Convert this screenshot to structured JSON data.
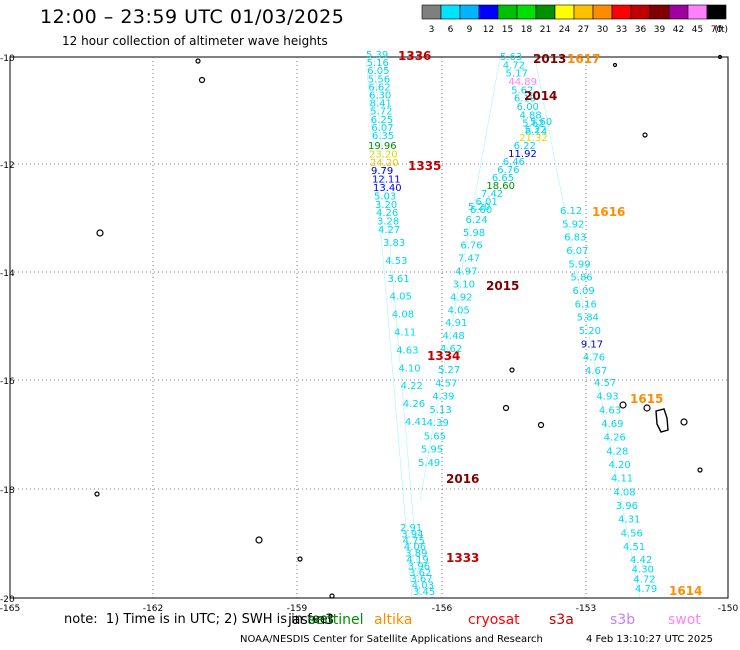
{
  "header": {
    "title": "12:00 – 23:59 UTC 01/03/2025",
    "subtitle": "12 hour collection of altimeter wave heights"
  },
  "scale": {
    "labels": [
      "3",
      "6",
      "9",
      "12",
      "15",
      "18",
      "21",
      "24",
      "27",
      "30",
      "33",
      "36",
      "39",
      "42",
      "45",
      "70"
    ],
    "unit": "(ft)",
    "colors": [
      "#7f7f7f",
      "#00e5ff",
      "#00b4ff",
      "#0000ff",
      "#00c000",
      "#00e000",
      "#009000",
      "#ffff00",
      "#ffc000",
      "#ff8c00",
      "#ff0000",
      "#c00000",
      "#800000",
      "#a000a0",
      "#ff80ff",
      "#000000"
    ]
  },
  "axes": {
    "lat_labels": [
      "-10",
      "-12",
      "-14",
      "-16",
      "-18",
      "-20"
    ],
    "lon_labels": [
      "-165",
      "-162",
      "-159",
      "-156",
      "-153",
      "-150"
    ]
  },
  "map": {
    "passes": [
      {
        "time": "1336",
        "color": "#c00000",
        "values": [
          "5.39",
          "5.16",
          "6.05",
          "5.56",
          "6.62",
          "6.30",
          "8.41",
          "5.72",
          "6.25",
          "6.07",
          "6.35"
        ]
      },
      {
        "time": "1335",
        "color": "#c00000",
        "values": [
          "19.96",
          "23.20",
          "24.20",
          "9.79",
          "12.11",
          "13.40",
          "5.03",
          "3.20",
          "4.26",
          "3.28",
          "4.27"
        ]
      },
      {
        "time": "1334",
        "color": "#c00000",
        "values": [
          "3.83",
          "4.53",
          "3.61",
          "4.05",
          "4.08",
          "4.11",
          "4.63",
          "4.10",
          "4.22",
          "4.26",
          "4.41"
        ]
      },
      {
        "time": "1333",
        "color": "#c00000",
        "values": [
          "2.91",
          "3.94",
          "4.75",
          "4.06",
          "3.89",
          "4.19",
          "3.96",
          "3.62",
          "3.67",
          "4.03",
          "3.45"
        ]
      },
      {
        "time": "2013",
        "color": "#800000",
        "values": [
          "5.63",
          "4.72",
          "5.17",
          "44.89",
          "5.62",
          "6.19",
          "6.00",
          "4.88",
          "5.62",
          "6.14"
        ]
      },
      {
        "time": "2014",
        "color": "#800000",
        "values": [
          "5.60",
          "5.22",
          "21.32",
          "6.22",
          "11.92",
          "6.46",
          "6.76",
          "6.65",
          "18.60",
          "7.42",
          "6.01",
          "6.60"
        ]
      },
      {
        "time": "2015",
        "color": "#800000",
        "values": [
          "5.20",
          "6.24",
          "5.98",
          "6.76",
          "7.47",
          "4.97",
          "3.10",
          "4.92",
          "4.05",
          "4.91",
          "4.48",
          "4.62"
        ]
      },
      {
        "time": "2016",
        "color": "#800000",
        "values": [
          "5.27",
          "4.57",
          "4.39",
          "5.13",
          "4.39",
          "5.65",
          "5.95",
          "5.49"
        ]
      },
      {
        "time": "1616",
        "color": "#ff8c00",
        "values": [
          "6.12",
          "5.92",
          "6.83",
          "6.07",
          "5.99",
          "5.86",
          "6.09",
          "6.16",
          "5.84",
          "5.20",
          "9.17",
          "4.76",
          "4.67"
        ]
      },
      {
        "time": "1615",
        "color": "#ff8c00",
        "values": [
          "4.57",
          "4.93",
          "4.63",
          "4.69",
          "4.26",
          "4.28",
          "4.20",
          "4.11",
          "4.08",
          "3.96",
          "4.31",
          "4.56",
          "4.51"
        ]
      },
      {
        "time": "1614",
        "color": "#ff8c00",
        "values": [
          "4.42",
          "4.30",
          "4.72",
          "4.79"
        ]
      },
      {
        "time": "1617",
        "color": "#ff8c00",
        "values": []
      }
    ]
  },
  "footer": {
    "note": "note:  1) Time is in UTC; 2) SWH is in feet",
    "satellites": [
      {
        "name": "jason3",
        "color": "#000000"
      },
      {
        "name": "sentinel",
        "color": "#009000"
      },
      {
        "name": "altika",
        "color": "#ff8c00"
      },
      {
        "name": "cryosat",
        "color": "#ff0000"
      },
      {
        "name": "s3a",
        "color": "#c00000"
      },
      {
        "name": "s3b",
        "color": "#c080ff"
      },
      {
        "name": "swot",
        "color": "#ff80ff"
      }
    ],
    "credit": "NOAA/NESDIS Center for Satellite Applications and Research",
    "stamp": "4 Feb 13:10:27 UTC 2025"
  }
}
